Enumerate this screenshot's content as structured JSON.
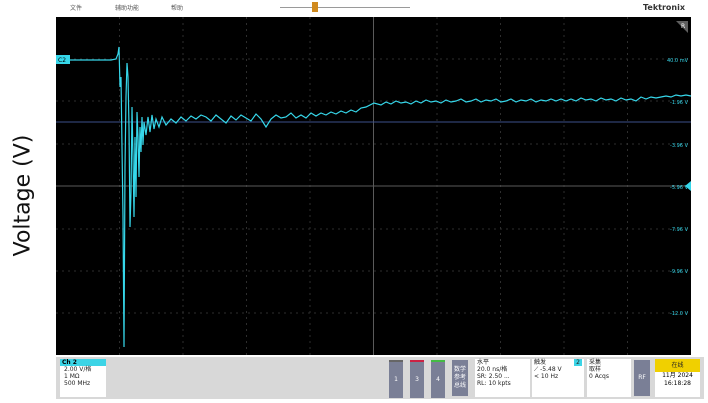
{
  "top_bar": {
    "menus": [
      "文件",
      "辅助功能",
      "帮助"
    ],
    "logo": "Tektronix"
  },
  "side_label": "Voltage (V)",
  "screen": {
    "channel_tag": "C2",
    "run_badge": "R",
    "scale_labels": [
      "40.0 mV",
      "-1.96 V",
      "-3.96 V",
      "-5.96 V",
      "-7.96 V",
      "-9.96 V",
      "-12.0 V"
    ],
    "trace_color": "#36d7ea",
    "grid_color": "#3a3a3a"
  },
  "channel2": {
    "name": "Ch 2",
    "scale": "2.00 V/格",
    "impedance": "1 MΩ",
    "bandwidth": "500 MHz"
  },
  "channel_buttons": [
    "1",
    "3",
    "4"
  ],
  "math_button": [
    "数学",
    "参考",
    "总线"
  ],
  "horizontal": {
    "title": "水平",
    "timebase": "20.0 ns/格",
    "sample_rate": "SR: 2.50 ...",
    "record_length": "RL: 10 kpts"
  },
  "trigger": {
    "title": "触发",
    "source": "2",
    "level": "-5.48 V",
    "frequency": "< 10 Hz"
  },
  "acquisition": {
    "title": "采集",
    "mode": "取样",
    "acqs": "0 Acqs"
  },
  "rf_button": "RF",
  "status": {
    "state": "在线",
    "date": "11月 2024",
    "time": "16:18:28"
  }
}
